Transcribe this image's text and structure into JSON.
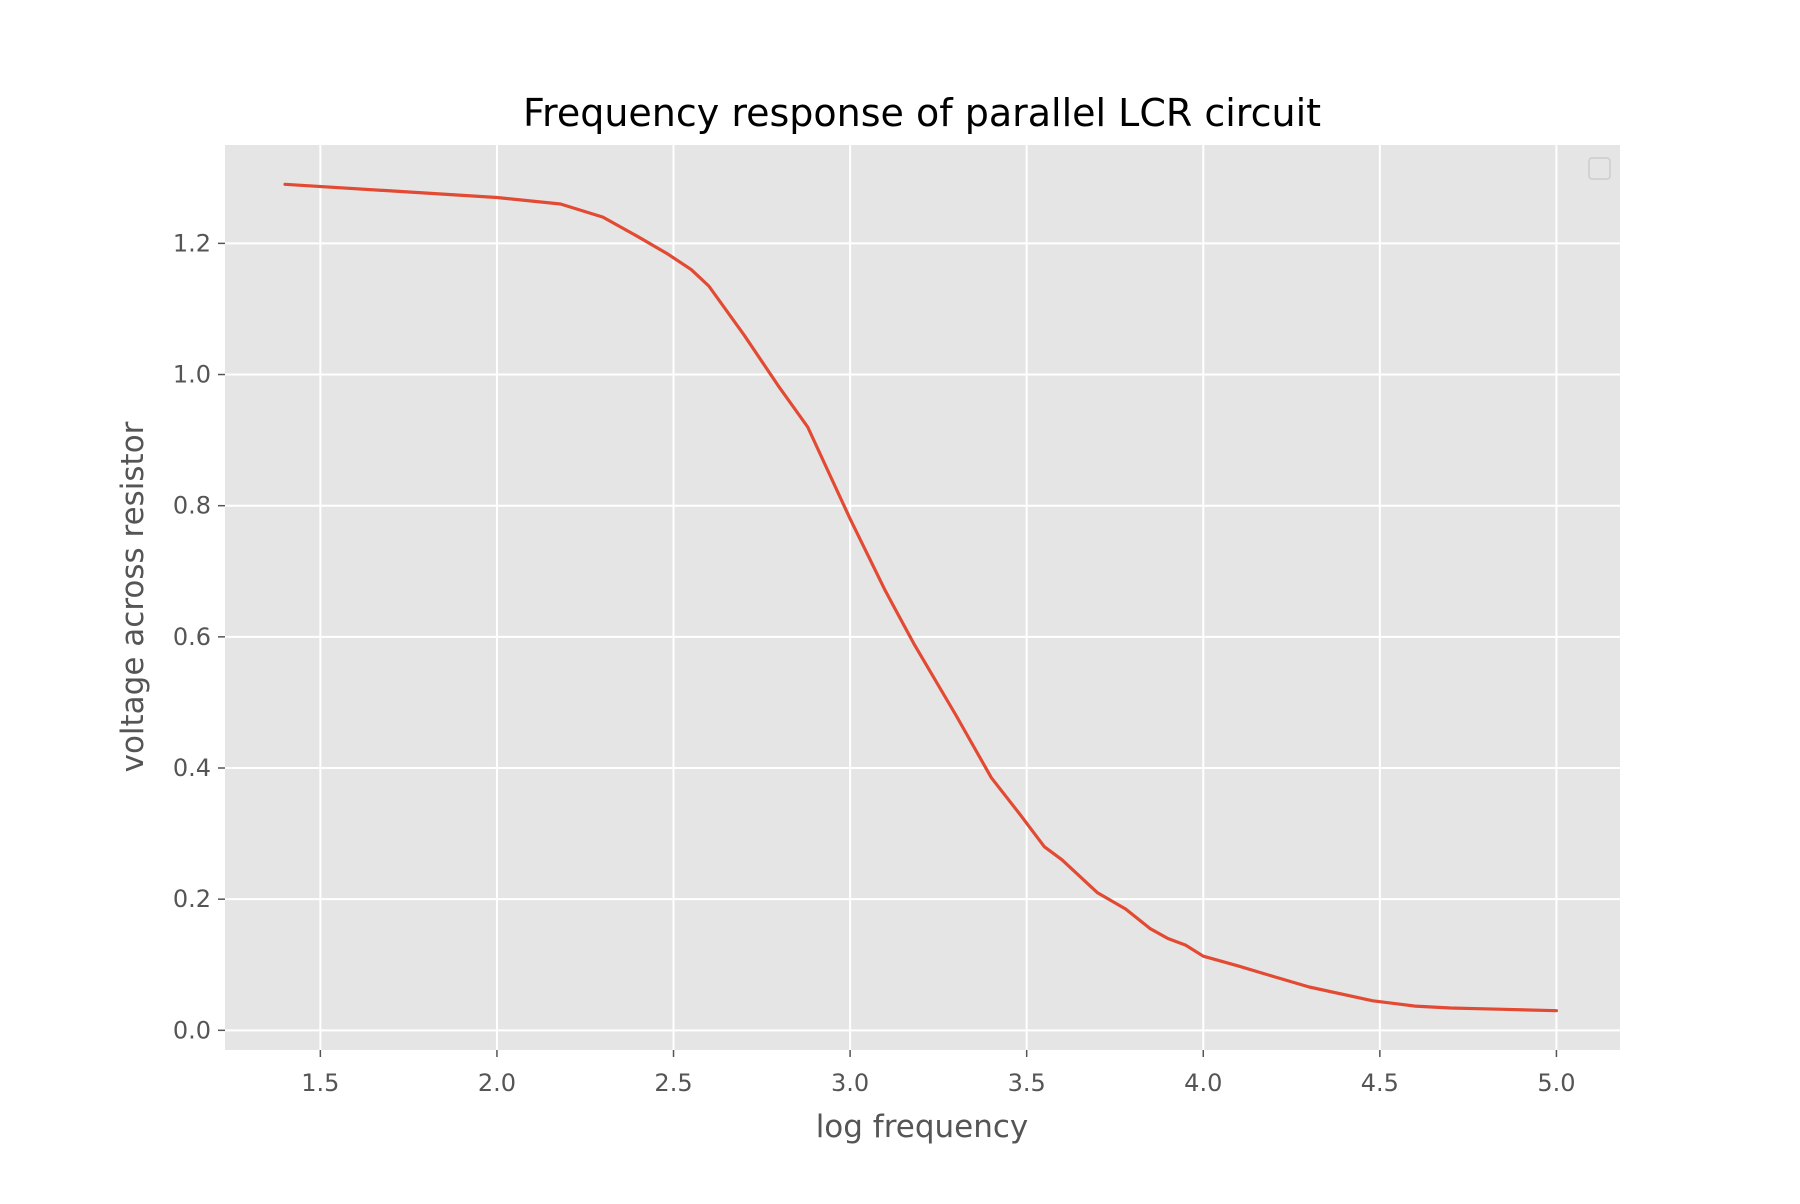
{
  "chart_data": {
    "type": "line",
    "title": "Frequency response of parallel LCR circuit",
    "xlabel": "log frequency",
    "ylabel": "voltage across resistor",
    "xlim": [
      1.23,
      5.18
    ],
    "ylim": [
      -0.03,
      1.35
    ],
    "xticks": [
      1.5,
      2.0,
      2.5,
      3.0,
      3.5,
      4.0,
      4.5,
      5.0
    ],
    "xtick_labels": [
      "1.5",
      "2.0",
      "2.5",
      "3.0",
      "3.5",
      "4.0",
      "4.5",
      "5.0"
    ],
    "yticks": [
      0.0,
      0.2,
      0.4,
      0.6,
      0.8,
      1.0,
      1.2
    ],
    "ytick_labels": [
      "0.0",
      "0.2",
      "0.4",
      "0.6",
      "0.8",
      "1.0",
      "1.2"
    ],
    "grid": true,
    "legend": "top-right, empty",
    "colors": {
      "background": "#e5e5e5",
      "grid": "#ffffff",
      "line": "#e24a33"
    },
    "series": [
      {
        "x": [
          1.4,
          1.7,
          2.0,
          2.18,
          2.3,
          2.4,
          2.48,
          2.55,
          2.6,
          2.7,
          2.8,
          2.88,
          3.0,
          3.1,
          3.18,
          3.3,
          3.4,
          3.48,
          3.55,
          3.6,
          3.7,
          3.78,
          3.85,
          3.9,
          3.95,
          4.0,
          4.1,
          4.2,
          4.3,
          4.48,
          4.6,
          4.7,
          4.85,
          5.0
        ],
        "y": [
          1.29,
          1.28,
          1.27,
          1.26,
          1.24,
          1.21,
          1.185,
          1.16,
          1.135,
          1.06,
          0.98,
          0.92,
          0.78,
          0.67,
          0.59,
          0.48,
          0.385,
          0.33,
          0.28,
          0.26,
          0.21,
          0.185,
          0.155,
          0.14,
          0.13,
          0.113,
          0.098,
          0.082,
          0.066,
          0.045,
          0.037,
          0.034,
          0.032,
          0.03
        ]
      }
    ]
  }
}
